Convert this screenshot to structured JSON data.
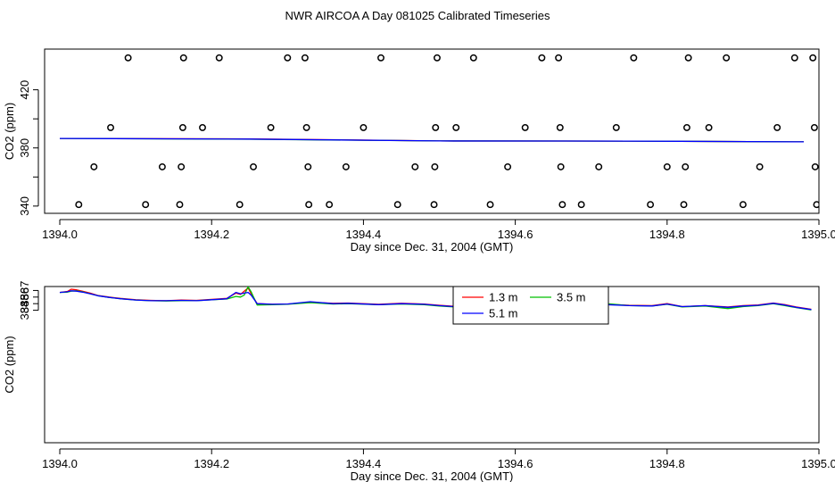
{
  "title": "NWR AIRCOA A  Day 081025  Calibrated Timeseries",
  "chart_data": [
    {
      "type": "scatter",
      "xlabel": "Day since Dec. 31, 2004 (GMT)",
      "ylabel": "CO2 (ppm)",
      "xlim": [
        1393.98,
        1395.0
      ],
      "ylim": [
        335,
        448
      ],
      "xticks": [
        "1394.0",
        "1394.2",
        "1394.4",
        "1394.6",
        "1394.8",
        "1395.0"
      ],
      "xtick_values": [
        1394.0,
        1394.2,
        1394.4,
        1394.6,
        1394.8,
        1395.0
      ],
      "yticks": [
        "340",
        "380",
        "420"
      ],
      "ytick_values": [
        340,
        380,
        420
      ],
      "ytick_minor": [
        360,
        400
      ],
      "circle_points": {
        "x": [
          1394.025,
          1394.045,
          1394.067,
          1394.09,
          1394.113,
          1394.135,
          1394.158,
          1394.16,
          1394.162,
          1394.163,
          1394.188,
          1394.21,
          1394.237,
          1394.255,
          1394.278,
          1394.3,
          1394.323,
          1394.325,
          1394.327,
          1394.328,
          1394.355,
          1394.377,
          1394.4,
          1394.423,
          1394.445,
          1394.468,
          1394.493,
          1394.494,
          1394.495,
          1394.497,
          1394.522,
          1394.545,
          1394.567,
          1394.59,
          1394.613,
          1394.635,
          1394.657,
          1394.659,
          1394.66,
          1394.662,
          1394.687,
          1394.71,
          1394.733,
          1394.756,
          1394.778,
          1394.8,
          1394.822,
          1394.824,
          1394.826,
          1394.828,
          1394.855,
          1394.878,
          1394.9,
          1394.922,
          1394.945,
          1394.968,
          1394.992,
          1394.994,
          1394.995,
          1394.997
        ],
        "y": [
          341,
          367,
          394,
          442,
          341,
          367,
          341,
          367,
          394,
          442,
          394,
          442,
          341,
          367,
          394,
          442,
          442,
          394,
          367,
          341,
          341,
          367,
          394,
          442,
          341,
          367,
          341,
          367,
          394,
          442,
          394,
          442,
          341,
          367,
          394,
          442,
          442,
          394,
          367,
          341,
          341,
          367,
          394,
          442,
          341,
          367,
          341,
          367,
          394,
          442,
          394,
          442,
          341,
          367,
          394,
          442,
          442,
          394,
          367,
          341
        ]
      },
      "series": [
        {
          "name": "1.3 m",
          "color": "#ff0000",
          "x": [
            1394.0,
            1394.25,
            1394.5,
            1394.75,
            1394.98
          ],
          "y": [
            386.5,
            386.2,
            384.8,
            384.7,
            384.2
          ]
        },
        {
          "name": "3.5 m",
          "color": "#00c000",
          "x": [
            1394.0,
            1394.25,
            1394.5,
            1394.75,
            1394.98
          ],
          "y": [
            386.5,
            386.0,
            384.8,
            384.7,
            384.2
          ]
        },
        {
          "name": "5.1 m",
          "color": "#0000ff",
          "x": [
            1394.0,
            1394.25,
            1394.5,
            1394.75,
            1394.98
          ],
          "y": [
            386.5,
            386.1,
            384.8,
            384.7,
            384.2
          ]
        }
      ]
    },
    {
      "type": "line",
      "xlabel": "Day since Dec. 31, 2004 (GMT)",
      "ylabel": "CO2 (ppm)",
      "xlim": [
        1393.98,
        1395.0
      ],
      "ylim": [
        363.9,
        387.6
      ],
      "xticks": [
        "1394.0",
        "1394.2",
        "1394.4",
        "1394.6",
        "1394.8",
        "1395.0"
      ],
      "xtick_values": [
        1394.0,
        1394.2,
        1394.4,
        1394.6,
        1394.8,
        1395.0
      ],
      "yticks": [
        "384",
        "385",
        "386",
        "387"
      ],
      "ytick_values": [
        384,
        385,
        386,
        387
      ],
      "legend": {
        "placement": "top-right",
        "entries": [
          "1.3 m",
          "3.5 m",
          "5.1 m"
        ]
      },
      "series": [
        {
          "name": "1.3 m",
          "color": "#ff0000",
          "x": [
            1394.0,
            1394.01,
            1394.015,
            1394.022,
            1394.03,
            1394.04,
            1394.05,
            1394.065,
            1394.08,
            1394.1,
            1394.12,
            1394.14,
            1394.16,
            1394.18,
            1394.2,
            1394.22,
            1394.232,
            1394.238,
            1394.243,
            1394.248,
            1394.252,
            1394.26,
            1394.28,
            1394.3,
            1394.33,
            1394.36,
            1394.38,
            1394.42,
            1394.45,
            1394.48,
            1394.5,
            1394.52,
            1394.55,
            1394.57,
            1394.6,
            1394.62,
            1394.65,
            1394.68,
            1394.7,
            1394.72,
            1394.75,
            1394.78,
            1394.8,
            1394.82,
            1394.85,
            1394.88,
            1394.9,
            1394.92,
            1394.94,
            1394.955,
            1394.97,
            1394.99
          ],
          "y": [
            386.7,
            386.85,
            387.2,
            387.1,
            386.9,
            386.6,
            386.25,
            386.0,
            385.8,
            385.6,
            385.5,
            385.45,
            385.55,
            385.5,
            385.65,
            385.8,
            386.6,
            386.4,
            386.9,
            387.4,
            386.5,
            385.0,
            384.9,
            384.95,
            385.2,
            385.05,
            385.1,
            384.9,
            385.05,
            384.95,
            384.75,
            384.6,
            384.7,
            385.1,
            384.75,
            384.65,
            384.6,
            384.5,
            384.55,
            384.9,
            384.75,
            384.7,
            385.0,
            384.55,
            384.7,
            384.5,
            384.7,
            384.8,
            385.1,
            384.85,
            384.5,
            384.15
          ]
        },
        {
          "name": "3.5 m",
          "color": "#00c000",
          "x": [
            1394.0,
            1394.01,
            1394.015,
            1394.022,
            1394.03,
            1394.04,
            1394.05,
            1394.065,
            1394.08,
            1394.1,
            1394.12,
            1394.14,
            1394.16,
            1394.18,
            1394.2,
            1394.22,
            1394.232,
            1394.238,
            1394.243,
            1394.248,
            1394.252,
            1394.26,
            1394.28,
            1394.3,
            1394.33,
            1394.36,
            1394.38,
            1394.42,
            1394.45,
            1394.48,
            1394.5,
            1394.52,
            1394.55,
            1394.57,
            1394.6,
            1394.62,
            1394.65,
            1394.68,
            1394.7,
            1394.72,
            1394.75,
            1394.78,
            1394.8,
            1394.82,
            1394.85,
            1394.88,
            1394.9,
            1394.92,
            1394.94,
            1394.955,
            1394.97,
            1394.99
          ],
          "y": [
            386.7,
            386.75,
            386.9,
            386.95,
            386.8,
            386.5,
            386.2,
            385.95,
            385.75,
            385.55,
            385.45,
            385.4,
            385.45,
            385.45,
            385.6,
            385.7,
            386.1,
            386.0,
            386.3,
            387.55,
            386.8,
            384.8,
            384.85,
            384.9,
            385.15,
            384.95,
            385.0,
            384.85,
            384.95,
            384.85,
            384.65,
            384.5,
            384.6,
            385.0,
            384.65,
            384.6,
            384.55,
            384.45,
            384.5,
            385.0,
            384.7,
            384.65,
            384.9,
            384.5,
            384.65,
            384.25,
            384.55,
            384.7,
            385.0,
            384.7,
            384.4,
            384.05
          ]
        },
        {
          "name": "5.1 m",
          "color": "#0000ff",
          "x": [
            1394.0,
            1394.01,
            1394.015,
            1394.022,
            1394.03,
            1394.04,
            1394.05,
            1394.065,
            1394.08,
            1394.1,
            1394.12,
            1394.14,
            1394.16,
            1394.18,
            1394.2,
            1394.22,
            1394.232,
            1394.238,
            1394.243,
            1394.248,
            1394.252,
            1394.26,
            1394.28,
            1394.3,
            1394.33,
            1394.36,
            1394.38,
            1394.42,
            1394.45,
            1394.48,
            1394.5,
            1394.52,
            1394.55,
            1394.57,
            1394.6,
            1394.62,
            1394.65,
            1394.68,
            1394.7,
            1394.72,
            1394.75,
            1394.78,
            1394.8,
            1394.82,
            1394.85,
            1394.88,
            1394.9,
            1394.92,
            1394.94,
            1394.955,
            1394.97,
            1394.99
          ],
          "y": [
            386.7,
            386.8,
            386.95,
            386.9,
            386.75,
            386.5,
            386.2,
            385.95,
            385.75,
            385.55,
            385.45,
            385.45,
            385.5,
            385.45,
            385.6,
            385.75,
            386.7,
            386.5,
            386.6,
            386.7,
            386.3,
            385.0,
            384.9,
            384.95,
            385.3,
            385.0,
            385.05,
            384.85,
            385.0,
            384.9,
            384.7,
            384.55,
            384.65,
            385.05,
            384.7,
            384.6,
            384.55,
            384.45,
            384.5,
            384.85,
            384.7,
            384.65,
            384.95,
            384.55,
            384.7,
            384.45,
            384.65,
            384.75,
            385.05,
            384.8,
            384.45,
            384.1
          ]
        }
      ]
    }
  ]
}
